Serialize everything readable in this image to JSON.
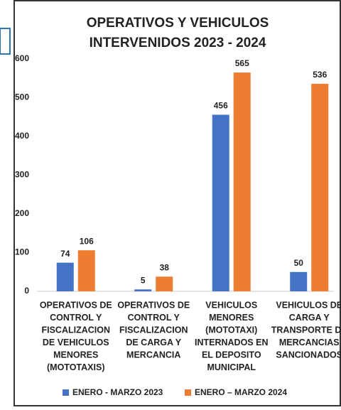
{
  "chart_data": {
    "type": "bar",
    "title": [
      "OPERATIVOS Y VEHICULOS",
      "INTERVENIDOS 2023 - 2024"
    ],
    "categories": [
      [
        "OPERATIVOS DE",
        "CONTROL Y",
        "FISCALIZACION",
        "DE VEHICULOS",
        "MENORES",
        "(MOTOTAXIS)"
      ],
      [
        "OPERATIVOS DE",
        "CONTROL Y",
        "FISCALIZACION",
        "DE CARGA Y",
        "MERCANCIA"
      ],
      [
        "VEHICULOS",
        "MENORES",
        "(MOTOTAXI)",
        "INTERNADOS EN",
        "EL DEPOSITO",
        "MUNICIPAL"
      ],
      [
        "VEHICULOS DE",
        "CARGA Y",
        "TRANSPORTE DE",
        "MERCANCIAS",
        "SANCIONADOS"
      ]
    ],
    "series": [
      {
        "name": "ENERO -  MARZO 2023",
        "color": "#4472c4",
        "values": [
          74,
          5,
          456,
          50
        ]
      },
      {
        "name": "ENERO – MARZO 2024",
        "color": "#ed7d31",
        "values": [
          106,
          38,
          565,
          536
        ]
      }
    ],
    "ylim": [
      0,
      600
    ],
    "yticks": [
      0,
      100,
      200,
      300,
      400,
      500,
      600
    ],
    "grid": false,
    "legend": "bottom"
  }
}
